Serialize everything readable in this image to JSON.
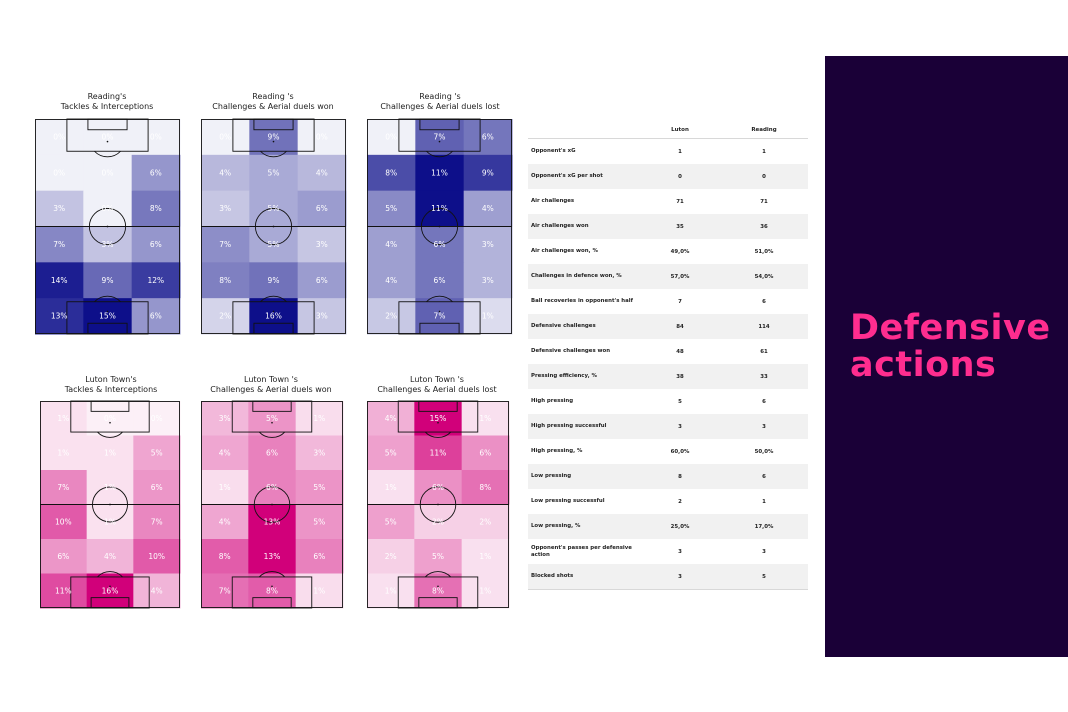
{
  "chart_data": [
    {
      "type": "heatmap",
      "team": "reading",
      "title_line1": "Reading's",
      "title_line2": "Tackles & Interceptions",
      "grid": [
        [
          "0%",
          "0%",
          "0%"
        ],
        [
          "0%",
          "0%",
          "6%"
        ],
        [
          "3%",
          "0%",
          "8%"
        ],
        [
          "7%",
          "3%",
          "6%"
        ],
        [
          "14%",
          "9%",
          "12%"
        ],
        [
          "13%",
          "15%",
          "6%"
        ]
      ],
      "values": [
        [
          0,
          0,
          0
        ],
        [
          0,
          0,
          6
        ],
        [
          3,
          0,
          8
        ],
        [
          7,
          3,
          6
        ],
        [
          14,
          9,
          12
        ],
        [
          13,
          15,
          6
        ]
      ]
    },
    {
      "type": "heatmap",
      "team": "reading",
      "title_line1": "Reading 's",
      "title_line2": "Challenges & Aerial duels won",
      "grid": [
        [
          "0%",
          "9%",
          "0%"
        ],
        [
          "4%",
          "5%",
          "4%"
        ],
        [
          "3%",
          "5%",
          "6%"
        ],
        [
          "7%",
          "5%",
          "3%"
        ],
        [
          "8%",
          "9%",
          "6%"
        ],
        [
          "2%",
          "16%",
          "3%"
        ]
      ],
      "values": [
        [
          0,
          9,
          0
        ],
        [
          4,
          5,
          4
        ],
        [
          3,
          5,
          6
        ],
        [
          7,
          5,
          3
        ],
        [
          8,
          9,
          6
        ],
        [
          2,
          16,
          3
        ]
      ]
    },
    {
      "type": "heatmap",
      "team": "reading",
      "title_line1": "Reading 's",
      "title_line2": "Challenges & Aerial duels lost",
      "grid": [
        [
          "0%",
          "7%",
          "6%"
        ],
        [
          "8%",
          "11%",
          "9%"
        ],
        [
          "5%",
          "11%",
          "4%"
        ],
        [
          "4%",
          "6%",
          "3%"
        ],
        [
          "4%",
          "6%",
          "3%"
        ],
        [
          "2%",
          "7%",
          "1%"
        ]
      ],
      "values": [
        [
          0,
          7,
          6
        ],
        [
          8,
          11,
          9
        ],
        [
          5,
          11,
          4
        ],
        [
          4,
          6,
          3
        ],
        [
          4,
          6,
          3
        ],
        [
          2,
          7,
          1
        ]
      ]
    },
    {
      "type": "heatmap",
      "team": "luton",
      "title_line1": "Luton Town's",
      "title_line2": "Tackles & Interceptions",
      "grid": [
        [
          "1%",
          "0%",
          "0%"
        ],
        [
          "1%",
          "1%",
          "5%"
        ],
        [
          "7%",
          "1%",
          "6%"
        ],
        [
          "10%",
          "1%",
          "7%"
        ],
        [
          "6%",
          "4%",
          "10%"
        ],
        [
          "11%",
          "16%",
          "4%"
        ]
      ],
      "values": [
        [
          1,
          0,
          0
        ],
        [
          1,
          1,
          5
        ],
        [
          7,
          1,
          6
        ],
        [
          10,
          1,
          7
        ],
        [
          6,
          4,
          10
        ],
        [
          11,
          16,
          4
        ]
      ]
    },
    {
      "type": "heatmap",
      "team": "luton",
      "title_line1": "Luton Town 's",
      "title_line2": "Challenges & Aerial duels won",
      "grid": [
        [
          "3%",
          "5%",
          "1%"
        ],
        [
          "4%",
          "6%",
          "3%"
        ],
        [
          "1%",
          "6%",
          "5%"
        ],
        [
          "4%",
          "13%",
          "5%"
        ],
        [
          "8%",
          "13%",
          "6%"
        ],
        [
          "7%",
          "8%",
          "1%"
        ]
      ],
      "values": [
        [
          3,
          5,
          1
        ],
        [
          4,
          6,
          3
        ],
        [
          1,
          6,
          5
        ],
        [
          4,
          13,
          5
        ],
        [
          8,
          13,
          6
        ],
        [
          7,
          8,
          1
        ]
      ]
    },
    {
      "type": "heatmap",
      "team": "luton",
      "title_line1": "Luton Town 's",
      "title_line2": "Challenges & Aerial duels lost",
      "grid": [
        [
          "4%",
          "15%",
          "1%"
        ],
        [
          "5%",
          "11%",
          "6%"
        ],
        [
          "1%",
          "6%",
          "8%"
        ],
        [
          "5%",
          "2%",
          "2%"
        ],
        [
          "2%",
          "5%",
          "1%"
        ],
        [
          "1%",
          "8%",
          "1%"
        ]
      ],
      "values": [
        [
          4,
          15,
          1
        ],
        [
          5,
          11,
          6
        ],
        [
          1,
          6,
          8
        ],
        [
          5,
          2,
          2
        ],
        [
          2,
          5,
          1
        ],
        [
          1,
          8,
          1
        ]
      ]
    }
  ],
  "colors": {
    "reading": "#0d0f8a",
    "luton": "#d1007a",
    "panel_bg": "#1a0037",
    "panel_text": "#ff2d8f"
  },
  "stats": {
    "header": {
      "col1": "Luton",
      "col2": "Reading"
    },
    "rows": [
      {
        "label": "Opponent's xG",
        "luton": "1",
        "reading": "1"
      },
      {
        "label": "Opponent's xG per shot",
        "luton": "0",
        "reading": "0"
      },
      {
        "label": "Air challenges",
        "luton": "71",
        "reading": "71"
      },
      {
        "label": "Air challenges won",
        "luton": "35",
        "reading": "36"
      },
      {
        "label": "Air challenges won, %",
        "luton": "49,0%",
        "reading": "51,0%"
      },
      {
        "label": "Challenges in defence won, %",
        "luton": "57,0%",
        "reading": "54,0%"
      },
      {
        "label": "Ball recoveries in opponent's half",
        "luton": "7",
        "reading": "6"
      },
      {
        "label": "Defensive challenges",
        "luton": "84",
        "reading": "114"
      },
      {
        "label": "Defensive challenges won",
        "luton": "48",
        "reading": "61"
      },
      {
        "label": "Pressing efficiency, %",
        "luton": "38",
        "reading": "33"
      },
      {
        "label": "High pressing",
        "luton": "5",
        "reading": "6"
      },
      {
        "label": "High pressing successful",
        "luton": "3",
        "reading": "3"
      },
      {
        "label": "High pressing, %",
        "luton": "60,0%",
        "reading": "50,0%"
      },
      {
        "label": "Low pressing",
        "luton": "8",
        "reading": "6"
      },
      {
        "label": "Low pressing successful",
        "luton": "2",
        "reading": "1"
      },
      {
        "label": "Low pressing, %",
        "luton": "25,0%",
        "reading": "17,0%"
      },
      {
        "label": "Opponent's passes per defensive action",
        "luton": "3",
        "reading": "3"
      },
      {
        "label": "Blocked shots",
        "luton": "3",
        "reading": "5"
      }
    ]
  },
  "side_panel": {
    "title_line1": "Defensive",
    "title_line2": "actions"
  }
}
